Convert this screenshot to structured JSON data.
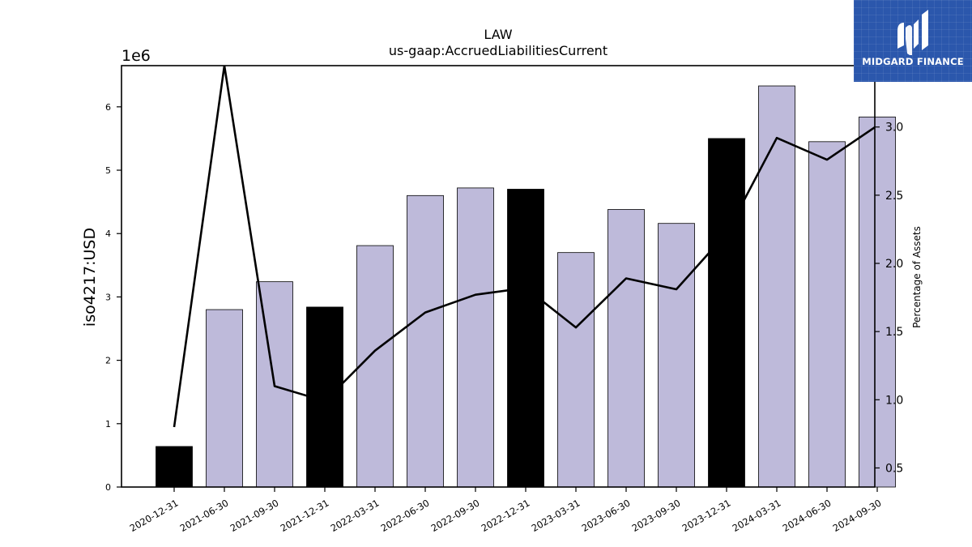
{
  "chart_data": {
    "type": "bar",
    "title": "LAW",
    "subtitle": "us-gaap:AccruedLiabilitiesCurrent",
    "ylabel": "iso4217:USD",
    "y_offset_text": "1e6",
    "ylabel_right": "Percentage of Assets",
    "categories": [
      "2020-12-31",
      "2021-06-30",
      "2021-09-30",
      "2021-12-31",
      "2022-03-31",
      "2022-06-30",
      "2022-09-30",
      "2022-12-31",
      "2023-03-31",
      "2023-06-30",
      "2023-09-30",
      "2023-12-31",
      "2024-03-31",
      "2024-06-30",
      "2024-09-30"
    ],
    "series": [
      {
        "type": "bar",
        "values": [
          0.64,
          2.8,
          3.24,
          2.84,
          3.81,
          4.6,
          4.72,
          4.7,
          3.7,
          4.38,
          4.16,
          5.5,
          6.33,
          5.45,
          5.84
        ],
        "year_end_highlight": [
          true,
          false,
          false,
          true,
          false,
          false,
          false,
          true,
          false,
          false,
          false,
          true,
          false,
          false,
          false
        ]
      },
      {
        "type": "line",
        "axis": "right",
        "values": [
          0.8,
          3.45,
          1.1,
          0.99,
          1.36,
          1.64,
          1.77,
          1.82,
          1.53,
          1.89,
          1.81,
          2.22,
          2.92,
          2.76,
          3.01
        ]
      }
    ],
    "ylim": [
      0,
      6.65
    ],
    "yticks": [
      0,
      1,
      2,
      3,
      4,
      5,
      6
    ],
    "ylim_right": [
      0.36,
      3.45
    ],
    "yticks_right": [
      "0.5",
      "1.0",
      "1.5",
      "2.0",
      "2.5",
      "3.0"
    ],
    "colors": {
      "bar": "#bebada",
      "bar_highlight": "#000000",
      "line": "#000000"
    },
    "grid": false,
    "legend": "none"
  },
  "logo": {
    "text": "MIDGARD FINANCE",
    "color": "#2b57ac"
  }
}
